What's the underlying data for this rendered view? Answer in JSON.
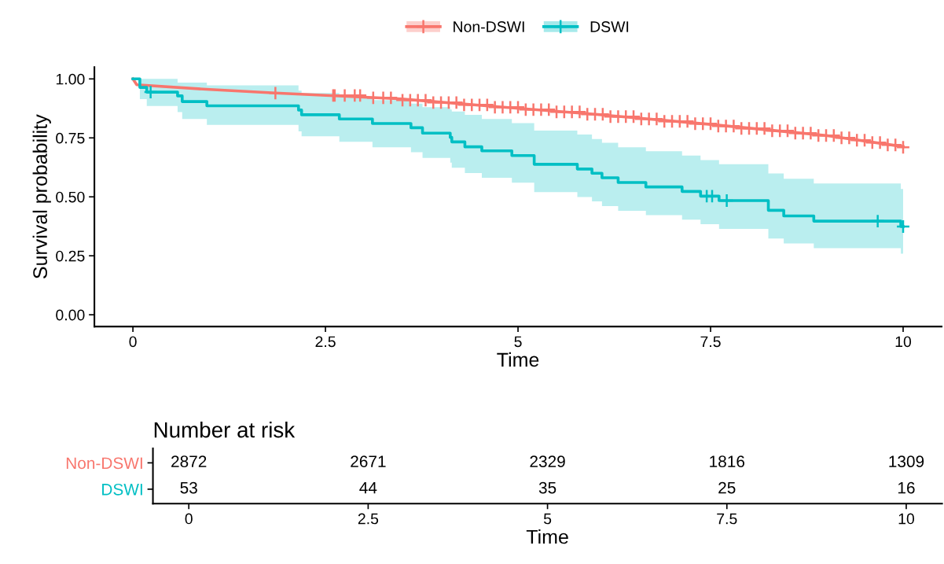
{
  "chart_data": [
    {
      "type": "step",
      "xlabel": "Time",
      "ylabel": "Survival probability",
      "xlim": [
        -0.5,
        10.5
      ],
      "ylim": [
        -0.05,
        1.05
      ],
      "xticks": [
        0,
        2.5,
        5,
        7.5,
        10
      ],
      "yticks": [
        {
          "value": 0,
          "label": "0.00"
        },
        {
          "value": 0.25,
          "label": "0.25"
        },
        {
          "value": 0.5,
          "label": "0.50"
        },
        {
          "value": 0.75,
          "label": "0.75"
        },
        {
          "value": 1,
          "label": "1.00"
        }
      ],
      "grid": false,
      "legend": "top",
      "series": [
        {
          "name": "Non-DSWI",
          "color": "#f8766d",
          "type": "line",
          "marker": "none",
          "x": [
            0,
            0.05,
            1,
            1.85,
            3.44,
            4.81,
            6,
            7.47,
            9,
            10
          ],
          "values": [
            1.0,
            0.975,
            0.955,
            0.94,
            0.916,
            0.88,
            0.85,
            0.808,
            0.76,
            0.713
          ]
        },
        {
          "color": "#f8766d",
          "type": "scatter",
          "marker": "cross",
          "x": [
            1.85,
            2.6,
            2.62,
            2.75,
            2.88,
            2.95,
            3.12,
            3.25,
            3.35,
            3.5,
            3.6,
            3.7,
            3.8,
            3.9,
            4.0,
            4.1,
            4.2,
            4.3,
            4.4,
            4.5,
            4.6,
            4.7,
            4.8,
            4.9,
            5.0,
            5.1,
            5.2,
            5.3,
            5.4,
            5.5,
            5.6,
            5.7,
            5.8,
            5.9,
            6.0,
            6.1,
            6.2,
            6.3,
            6.4,
            6.5,
            6.6,
            6.7,
            6.8,
            6.9,
            7.0,
            7.1,
            7.2,
            7.3,
            7.4,
            7.5,
            7.6,
            7.7,
            7.8,
            7.9,
            8.0,
            8.1,
            8.2,
            8.3,
            8.4,
            8.5,
            8.6,
            8.7,
            8.8,
            8.9,
            9.0,
            9.1,
            9.2,
            9.3,
            9.4,
            9.5,
            9.6,
            9.7,
            9.8,
            9.9,
            10.0
          ],
          "values": [
            0.94,
            0.93,
            0.93,
            0.93,
            0.93,
            0.93,
            0.92,
            0.92,
            0.92,
            0.91,
            0.91,
            0.91,
            0.91,
            0.9,
            0.9,
            0.9,
            0.9,
            0.89,
            0.89,
            0.89,
            0.89,
            0.88,
            0.88,
            0.88,
            0.88,
            0.87,
            0.87,
            0.87,
            0.87,
            0.86,
            0.86,
            0.86,
            0.86,
            0.85,
            0.85,
            0.85,
            0.84,
            0.84,
            0.84,
            0.84,
            0.83,
            0.83,
            0.83,
            0.82,
            0.82,
            0.82,
            0.82,
            0.81,
            0.81,
            0.81,
            0.8,
            0.8,
            0.8,
            0.79,
            0.79,
            0.79,
            0.79,
            0.78,
            0.78,
            0.78,
            0.77,
            0.77,
            0.77,
            0.76,
            0.76,
            0.76,
            0.75,
            0.75,
            0.74,
            0.74,
            0.73,
            0.73,
            0.72,
            0.72,
            0.71
          ]
        },
        {
          "name": "DSWI",
          "color": "#00bfc4",
          "type": "step",
          "marker": "none",
          "x": [
            0,
            0.09,
            0.18,
            0.58,
            0.64,
            0.96,
            2.15,
            2.19,
            2.68,
            3.11,
            3.61,
            3.76,
            4.12,
            4.14,
            4.31,
            4.53,
            4.92,
            5.21,
            5.77,
            5.96,
            6.09,
            6.3,
            6.66,
            7.13,
            7.37,
            7.61,
            8.25,
            8.45,
            8.84,
            9.97,
            10.0
          ],
          "values": [
            1.0,
            0.964,
            0.944,
            0.928,
            0.904,
            0.886,
            0.868,
            0.848,
            0.83,
            0.811,
            0.793,
            0.77,
            0.752,
            0.733,
            0.712,
            0.695,
            0.675,
            0.638,
            0.618,
            0.6,
            0.581,
            0.561,
            0.542,
            0.523,
            0.503,
            0.484,
            0.443,
            0.419,
            0.397,
            0.374,
            0.374
          ],
          "lower": [
            1.0,
            0.914,
            0.885,
            0.859,
            0.83,
            0.805,
            0.778,
            0.757,
            0.733,
            0.71,
            0.689,
            0.665,
            0.645,
            0.623,
            0.601,
            0.581,
            0.56,
            0.52,
            0.499,
            0.481,
            0.461,
            0.441,
            0.422,
            0.403,
            0.384,
            0.364,
            0.323,
            0.302,
            0.282,
            0.259,
            0.259
          ],
          "upper": [
            1.0,
            1.0,
            1.0,
            0.984,
            0.984,
            0.973,
            0.95,
            0.94,
            0.925,
            0.91,
            0.895,
            0.88,
            0.87,
            0.862,
            0.848,
            0.83,
            0.813,
            0.781,
            0.764,
            0.745,
            0.729,
            0.71,
            0.693,
            0.675,
            0.656,
            0.638,
            0.599,
            0.577,
            0.557,
            0.533,
            0.533
          ]
        },
        {
          "color": "#00bfc4",
          "type": "scatter",
          "marker": "cross",
          "x": [
            0.23,
            7.45,
            7.52,
            7.71,
            9.67,
            10.0
          ],
          "values": [
            0.944,
            0.503,
            0.503,
            0.484,
            0.397,
            0.374
          ]
        }
      ]
    },
    {
      "type": "heatmap",
      "title": "Number at risk",
      "xlabel": "Time",
      "categories": [
        "0",
        "2.5",
        "5",
        "7.5",
        "10"
      ],
      "y_categories": [
        "Non-DSWI",
        "DSWI"
      ],
      "colors": [
        "#f8766d",
        "#00bfc4"
      ],
      "data_labels": true,
      "cells": [
        [
          2872,
          2671,
          2329,
          1816,
          1309
        ],
        [
          53,
          44,
          35,
          25,
          16
        ]
      ]
    }
  ]
}
